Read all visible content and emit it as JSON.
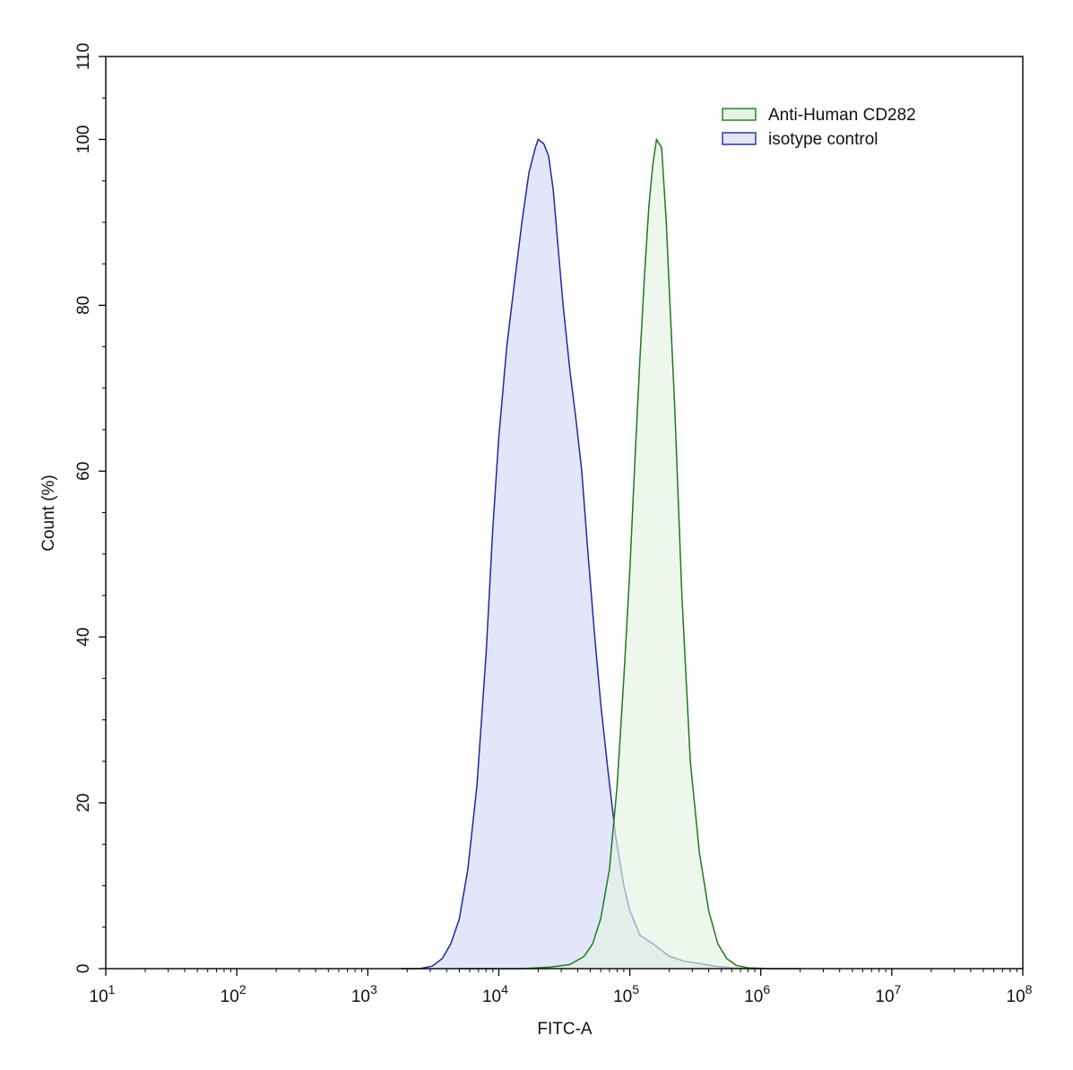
{
  "chart_data": {
    "type": "area",
    "title": "",
    "xlabel": "FITC-A",
    "ylabel": "Count  (%)",
    "x_scale": "log",
    "xlim": [
      10,
      100000000
    ],
    "ylim": [
      0,
      110
    ],
    "x_ticks": [
      {
        "value": 10,
        "base": "10",
        "exp": "1"
      },
      {
        "value": 100,
        "base": "10",
        "exp": "2"
      },
      {
        "value": 1000,
        "base": "10",
        "exp": "3"
      },
      {
        "value": 10000,
        "base": "10",
        "exp": "4"
      },
      {
        "value": 100000,
        "base": "10",
        "exp": "5"
      },
      {
        "value": 1000000,
        "base": "10",
        "exp": "6"
      },
      {
        "value": 10000000,
        "base": "10",
        "exp": "7"
      },
      {
        "value": 100000000,
        "base": "10",
        "exp": "8"
      }
    ],
    "y_ticks": [
      0,
      20,
      40,
      60,
      80,
      100,
      110
    ],
    "grid": false,
    "legend_position": "top-right",
    "series": [
      {
        "name": "Anti-Human CD282",
        "stroke": "#1e7a1e",
        "fill": "#e4f3e2",
        "points": [
          [
            5000,
            0
          ],
          [
            15000,
            0
          ],
          [
            25000,
            0.2
          ],
          [
            35000,
            0.5
          ],
          [
            45000,
            1.5
          ],
          [
            52000,
            3
          ],
          [
            60000,
            6
          ],
          [
            70000,
            12
          ],
          [
            80000,
            22
          ],
          [
            90000,
            35
          ],
          [
            100000,
            48
          ],
          [
            110000,
            62
          ],
          [
            120000,
            74
          ],
          [
            130000,
            84
          ],
          [
            140000,
            92
          ],
          [
            150000,
            97
          ],
          [
            160000,
            100
          ],
          [
            175000,
            99
          ],
          [
            190000,
            90
          ],
          [
            200000,
            82
          ],
          [
            220000,
            68
          ],
          [
            250000,
            45
          ],
          [
            290000,
            25
          ],
          [
            340000,
            14
          ],
          [
            400000,
            7
          ],
          [
            470000,
            3
          ],
          [
            550000,
            1.2
          ],
          [
            650000,
            0.4
          ],
          [
            800000,
            0.1
          ],
          [
            1200000,
            0
          ],
          [
            2000000,
            0
          ]
        ]
      },
      {
        "name": "isotype control",
        "stroke": "#1f2a9e",
        "fill": "#e3e6f9",
        "points": [
          [
            1800,
            0
          ],
          [
            2500,
            0
          ],
          [
            3100,
            0.3
          ],
          [
            3700,
            1.2
          ],
          [
            4300,
            3
          ],
          [
            5000,
            6
          ],
          [
            5800,
            12
          ],
          [
            6800,
            22
          ],
          [
            8000,
            38
          ],
          [
            9000,
            53
          ],
          [
            10000,
            64
          ],
          [
            11500,
            75
          ],
          [
            13000,
            82
          ],
          [
            15000,
            90
          ],
          [
            17000,
            96
          ],
          [
            19000,
            99
          ],
          [
            20000,
            100
          ],
          [
            22000,
            99.5
          ],
          [
            24000,
            98
          ],
          [
            26000,
            94
          ],
          [
            28000,
            88
          ],
          [
            31000,
            80
          ],
          [
            35000,
            72
          ],
          [
            39000,
            66
          ],
          [
            43000,
            60
          ],
          [
            48000,
            50
          ],
          [
            54000,
            40
          ],
          [
            60000,
            32
          ],
          [
            68000,
            24
          ],
          [
            78000,
            16
          ],
          [
            90000,
            10
          ],
          [
            100000,
            7
          ],
          [
            120000,
            4
          ],
          [
            150000,
            3
          ],
          [
            200000,
            1.5
          ],
          [
            260000,
            0.9
          ],
          [
            350000,
            0.6
          ],
          [
            450000,
            0.3
          ],
          [
            600000,
            0.1
          ],
          [
            900000,
            0
          ]
        ]
      }
    ]
  }
}
